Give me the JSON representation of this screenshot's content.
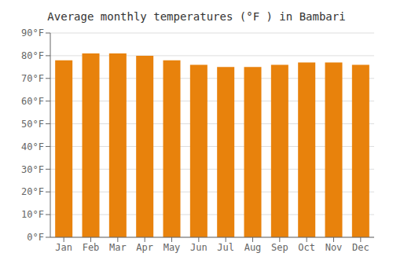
{
  "chart_data": {
    "type": "bar",
    "title": "Average monthly temperatures (°F ) in Bambari",
    "categories": [
      "Jan",
      "Feb",
      "Mar",
      "Apr",
      "May",
      "Jun",
      "Jul",
      "Aug",
      "Sep",
      "Oct",
      "Nov",
      "Dec"
    ],
    "values": [
      78,
      81,
      81,
      80,
      78,
      76,
      75,
      75,
      76,
      77,
      77,
      76
    ],
    "color": "#E8820C",
    "ylim": [
      0,
      90
    ],
    "yticks": [
      {
        "value": 0,
        "label": "0°F"
      },
      {
        "value": 10,
        "label": "10°F"
      },
      {
        "value": 20,
        "label": "20°F"
      },
      {
        "value": 30,
        "label": "30°F"
      },
      {
        "value": 40,
        "label": "40°F"
      },
      {
        "value": 50,
        "label": "50°F"
      },
      {
        "value": 60,
        "label": "60°F"
      },
      {
        "value": 70,
        "label": "70°F"
      },
      {
        "value": 80,
        "label": "80°F"
      },
      {
        "value": 90,
        "label": "90°F"
      }
    ],
    "grid": true
  }
}
